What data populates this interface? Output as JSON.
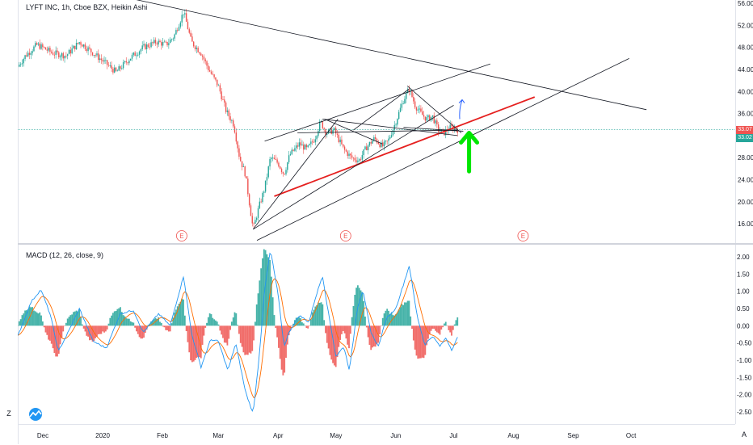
{
  "chart_title": "LYFT INC, 1h, Cboe BZX, Heikin Ashi",
  "macd_title": "MACD (12, 26, close, 9)",
  "left_toolbar": {
    "scale_button": "Z"
  },
  "bottom_right": {
    "auto_button": "A"
  },
  "colors": {
    "up": "#26a69a",
    "down": "#ef5350",
    "macd_line": "#2196f3",
    "signal_line": "#ff6d00",
    "price_line": "#26a69a",
    "trend_red": "#e5201f",
    "arrow_green": "#00e600",
    "arrow_blue": "#2962ff"
  },
  "price_labels": {
    "current": "33.07",
    "secondary": "33.02",
    "current_color": "#ef5350",
    "secondary_color": "#26a69a"
  },
  "earnings_markers": [
    "E",
    "E",
    "E"
  ],
  "chart_data": [
    {
      "type": "candlestick",
      "title": "LYFT INC, 1h, Cboe BZX, Heikin Ashi",
      "y_ticks": [
        "56.00",
        "52.00",
        "48.00",
        "44.00",
        "40.00",
        "36.00",
        "32.00",
        "28.00",
        "24.00",
        "20.00",
        "16.00"
      ],
      "y_tick_values": [
        56,
        52,
        48,
        44,
        40,
        36,
        32,
        28,
        24,
        20,
        16
      ],
      "ylim": [
        12.5,
        56.6
      ],
      "x_ticks": [
        "Dec",
        "2020",
        "Feb",
        "Mar",
        "Apr",
        "May",
        "Jun",
        "Jul",
        "Aug",
        "Sep",
        "Oct"
      ],
      "x_tick_dates": [
        "2019-12-01",
        "2020-01-01",
        "2020-02-01",
        "2020-03-01",
        "2020-04-01",
        "2020-05-01",
        "2020-06-01",
        "2020-07-01",
        "2020-08-01",
        "2020-09-01",
        "2020-10-01"
      ],
      "xlim": [
        "2019-11-18",
        "2020-11-24"
      ],
      "last_date": "2020-07-03",
      "price_path": [
        [
          "2019-11-18",
          44.5
        ],
        [
          "2019-11-22",
          46.5
        ],
        [
          "2019-11-28",
          48.5
        ],
        [
          "2019-12-06",
          47.0
        ],
        [
          "2019-12-13",
          46.5
        ],
        [
          "2019-12-20",
          49.0
        ],
        [
          "2019-12-27",
          47.0
        ],
        [
          "2020-01-03",
          45.0
        ],
        [
          "2020-01-08",
          43.5
        ],
        [
          "2020-01-15",
          46.0
        ],
        [
          "2020-01-22",
          48.0
        ],
        [
          "2020-01-29",
          49.0
        ],
        [
          "2020-02-03",
          48.5
        ],
        [
          "2020-02-07",
          50.0
        ],
        [
          "2020-02-12",
          54.5
        ],
        [
          "2020-02-16",
          49.0
        ],
        [
          "2020-02-21",
          47.0
        ],
        [
          "2020-02-25",
          44.0
        ],
        [
          "2020-03-01",
          41.0
        ],
        [
          "2020-03-05",
          36.5
        ],
        [
          "2020-03-09",
          34.0
        ],
        [
          "2020-03-12",
          28.0
        ],
        [
          "2020-03-15",
          25.0
        ],
        [
          "2020-03-17",
          20.0
        ],
        [
          "2020-03-19",
          15.0
        ],
        [
          "2020-03-22",
          19.0
        ],
        [
          "2020-03-25",
          22.5
        ],
        [
          "2020-03-28",
          28.0
        ],
        [
          "2020-04-01",
          27.0
        ],
        [
          "2020-04-04",
          25.0
        ],
        [
          "2020-04-07",
          28.5
        ],
        [
          "2020-04-12",
          30.5
        ],
        [
          "2020-04-16",
          29.5
        ],
        [
          "2020-04-20",
          31.5
        ],
        [
          "2020-04-23",
          34.5
        ],
        [
          "2020-04-26",
          32.5
        ],
        [
          "2020-04-30",
          33.0
        ],
        [
          "2020-05-05",
          29.5
        ],
        [
          "2020-05-09",
          28.0
        ],
        [
          "2020-05-13",
          27.5
        ],
        [
          "2020-05-17",
          30.0
        ],
        [
          "2020-05-21",
          31.5
        ],
        [
          "2020-05-25",
          30.0
        ],
        [
          "2020-05-28",
          31.0
        ],
        [
          "2020-06-01",
          34.5
        ],
        [
          "2020-06-05",
          38.5
        ],
        [
          "2020-06-08",
          40.5
        ],
        [
          "2020-06-11",
          37.5
        ],
        [
          "2020-06-14",
          36.0
        ],
        [
          "2020-06-17",
          35.0
        ],
        [
          "2020-06-20",
          35.5
        ],
        [
          "2020-06-23",
          33.0
        ],
        [
          "2020-06-26",
          32.5
        ],
        [
          "2020-06-29",
          33.5
        ],
        [
          "2020-07-03",
          33.07
        ]
      ],
      "trendlines": [
        {
          "name": "downtrend-line",
          "color": "#131722",
          "from": [
            "2019-12-25",
            58.5
          ],
          "to": [
            "2020-10-09",
            36.7
          ]
        },
        {
          "name": "red-support-line",
          "color": "#e5201f",
          "from": [
            "2020-03-30",
            21.0
          ],
          "to": [
            "2020-08-12",
            39.0
          ]
        },
        {
          "name": "channel-lower-line",
          "color": "#131722",
          "from": [
            "2020-03-21",
            13.0
          ],
          "to": [
            "2020-09-30",
            46.0
          ]
        },
        {
          "name": "channel-upper-line",
          "color": "#131722",
          "from": [
            "2020-03-25",
            31.0
          ],
          "to": [
            "2020-07-20",
            45.0
          ]
        },
        {
          "name": "fan-line-1",
          "color": "#131722",
          "from": [
            "2020-03-19",
            15.0
          ],
          "to": [
            "2020-05-02",
            35.0
          ]
        },
        {
          "name": "fan-line-2",
          "color": "#131722",
          "from": [
            "2020-03-19",
            15.0
          ],
          "to": [
            "2020-07-01",
            37.5
          ]
        },
        {
          "name": "wedge-top-line",
          "color": "#131722",
          "from": [
            "2020-04-11",
            32.5
          ],
          "to": [
            "2020-07-03",
            33.0
          ]
        },
        {
          "name": "wedge-bottom-line",
          "color": "#131722",
          "from": [
            "2020-04-24",
            35.0
          ],
          "to": [
            "2020-07-03",
            32.0
          ]
        },
        {
          "name": "pattern-line-a",
          "color": "#131722",
          "from": [
            "2020-04-25",
            35.0
          ],
          "to": [
            "2020-05-25",
            30.5
          ]
        },
        {
          "name": "pattern-line-b",
          "color": "#131722",
          "from": [
            "2020-05-10",
            33.0
          ],
          "to": [
            "2020-06-08",
            40.5
          ]
        },
        {
          "name": "pattern-line-c",
          "color": "#131722",
          "from": [
            "2020-06-07",
            41.0
          ],
          "to": [
            "2020-07-05",
            32.5
          ]
        },
        {
          "name": "pattern-line-d",
          "color": "#131722",
          "from": [
            "2020-06-05",
            33.5
          ],
          "to": [
            "2020-07-06",
            32.8
          ]
        }
      ],
      "current_price": 33.07,
      "earnings_dates": [
        "2020-02-11",
        "2020-05-06",
        "2020-08-06"
      ],
      "annotations": [
        {
          "name": "green-up-arrow",
          "date": "2020-07-09",
          "from": 25.5,
          "to": 32.5
        },
        {
          "name": "blue-up-arrow",
          "date": "2020-07-05",
          "from": 35.0,
          "to": 38.5
        }
      ],
      "grid": false
    },
    {
      "type": "line",
      "title": "MACD (12, 26, close, 9)",
      "y_ticks": [
        "2.00",
        "1.50",
        "1.00",
        "0.50",
        "0.00",
        "-0.50",
        "-1.00",
        "-1.50",
        "-2.00",
        "-2.50"
      ],
      "y_tick_values": [
        2,
        1.5,
        1,
        0.5,
        0,
        -0.5,
        -1,
        -1.5,
        -2,
        -2.5
      ],
      "ylim": [
        -2.85,
        2.35
      ],
      "macd_path": [
        [
          "2019-11-18",
          -0.3
        ],
        [
          "2019-11-25",
          0.7
        ],
        [
          "2019-11-30",
          1.05
        ],
        [
          "2019-12-05",
          0.3
        ],
        [
          "2019-12-09",
          -0.75
        ],
        [
          "2019-12-14",
          -0.2
        ],
        [
          "2019-12-20",
          0.5
        ],
        [
          "2019-12-27",
          -0.45
        ],
        [
          "2020-01-03",
          -0.65
        ],
        [
          "2020-01-10",
          0.35
        ],
        [
          "2020-01-17",
          0.45
        ],
        [
          "2020-01-22",
          -0.2
        ],
        [
          "2020-01-30",
          0.35
        ],
        [
          "2020-02-05",
          0.0
        ],
        [
          "2020-02-12",
          1.45
        ],
        [
          "2020-02-16",
          -0.2
        ],
        [
          "2020-02-21",
          -1.2
        ],
        [
          "2020-02-26",
          -0.4
        ],
        [
          "2020-03-01",
          -0.45
        ],
        [
          "2020-03-06",
          -1.3
        ],
        [
          "2020-03-10",
          -0.5
        ],
        [
          "2020-03-15",
          -1.9
        ],
        [
          "2020-03-19",
          -2.55
        ],
        [
          "2020-03-22",
          -1.0
        ],
        [
          "2020-03-25",
          1.05
        ],
        [
          "2020-03-28",
          2.2
        ],
        [
          "2020-04-01",
          0.9
        ],
        [
          "2020-04-04",
          -0.6
        ],
        [
          "2020-04-07",
          -0.15
        ],
        [
          "2020-04-12",
          0.3
        ],
        [
          "2020-04-17",
          0.1
        ],
        [
          "2020-04-20",
          0.75
        ],
        [
          "2020-04-24",
          1.45
        ],
        [
          "2020-04-27",
          0.4
        ],
        [
          "2020-05-01",
          -0.9
        ],
        [
          "2020-05-05",
          -0.6
        ],
        [
          "2020-05-08",
          -1.3
        ],
        [
          "2020-05-12",
          0.5
        ],
        [
          "2020-05-15",
          1.05
        ],
        [
          "2020-05-19",
          -0.2
        ],
        [
          "2020-05-23",
          -0.6
        ],
        [
          "2020-05-27",
          0.2
        ],
        [
          "2020-06-01",
          0.5
        ],
        [
          "2020-06-05",
          1.2
        ],
        [
          "2020-06-08",
          1.75
        ],
        [
          "2020-06-12",
          0.3
        ],
        [
          "2020-06-16",
          -0.55
        ],
        [
          "2020-06-20",
          -0.3
        ],
        [
          "2020-06-24",
          -0.6
        ],
        [
          "2020-06-27",
          -0.35
        ],
        [
          "2020-06-30",
          -0.7
        ],
        [
          "2020-07-03",
          -0.35
        ]
      ],
      "grid": false
    }
  ]
}
